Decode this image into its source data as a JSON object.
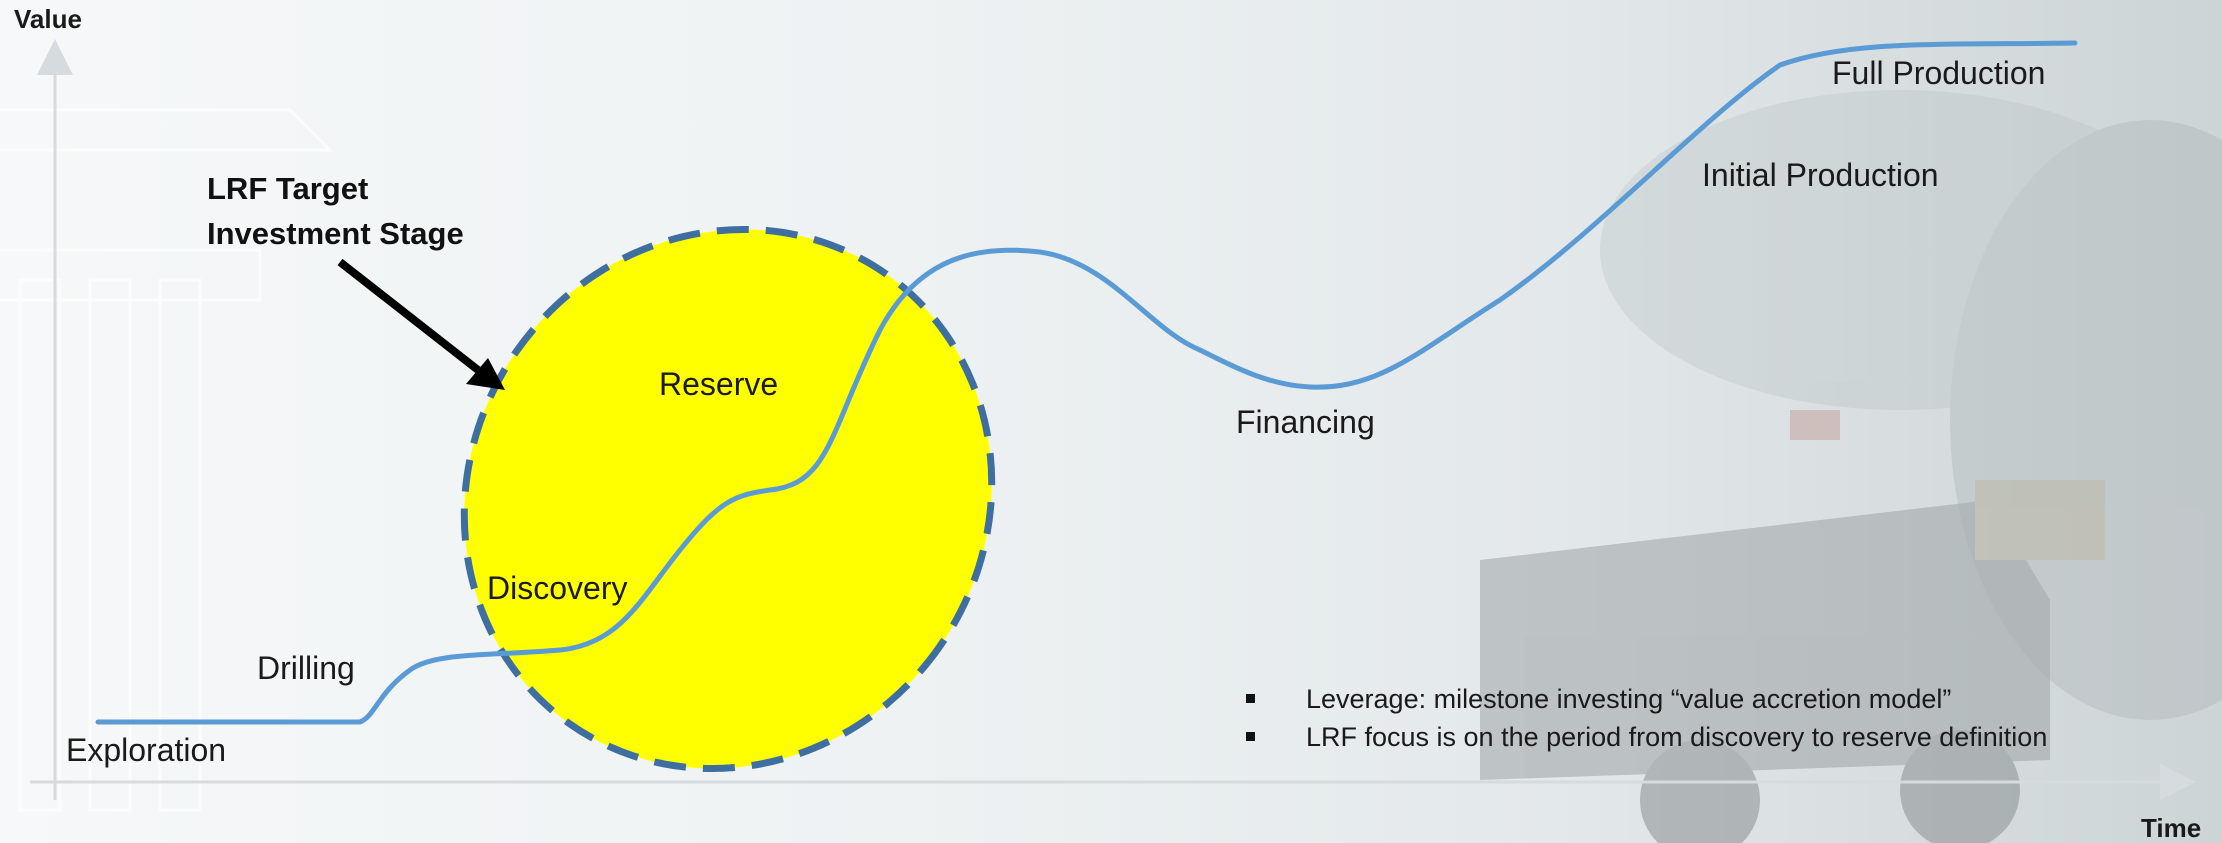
{
  "axes": {
    "y_label": "Value",
    "x_label": "Time"
  },
  "callout": {
    "line1": "LRF Target",
    "line2": "Investment Stage"
  },
  "stages": {
    "exploration": "Exploration",
    "drilling": "Drilling",
    "discovery": "Discovery",
    "reserve": "Reserve",
    "financing": "Financing",
    "initial_production": "Initial Production",
    "full_production": "Full Production"
  },
  "notes": [
    "Leverage: milestone investing “value accretion model”",
    "LRF focus is on the period from discovery to reserve definition"
  ],
  "colors": {
    "curve": "#5b9bd5",
    "highlight_fill": "#ffff00",
    "highlight_border": "#3f6fa0",
    "arrow": "#000000",
    "axis": "#d5dbde"
  }
}
